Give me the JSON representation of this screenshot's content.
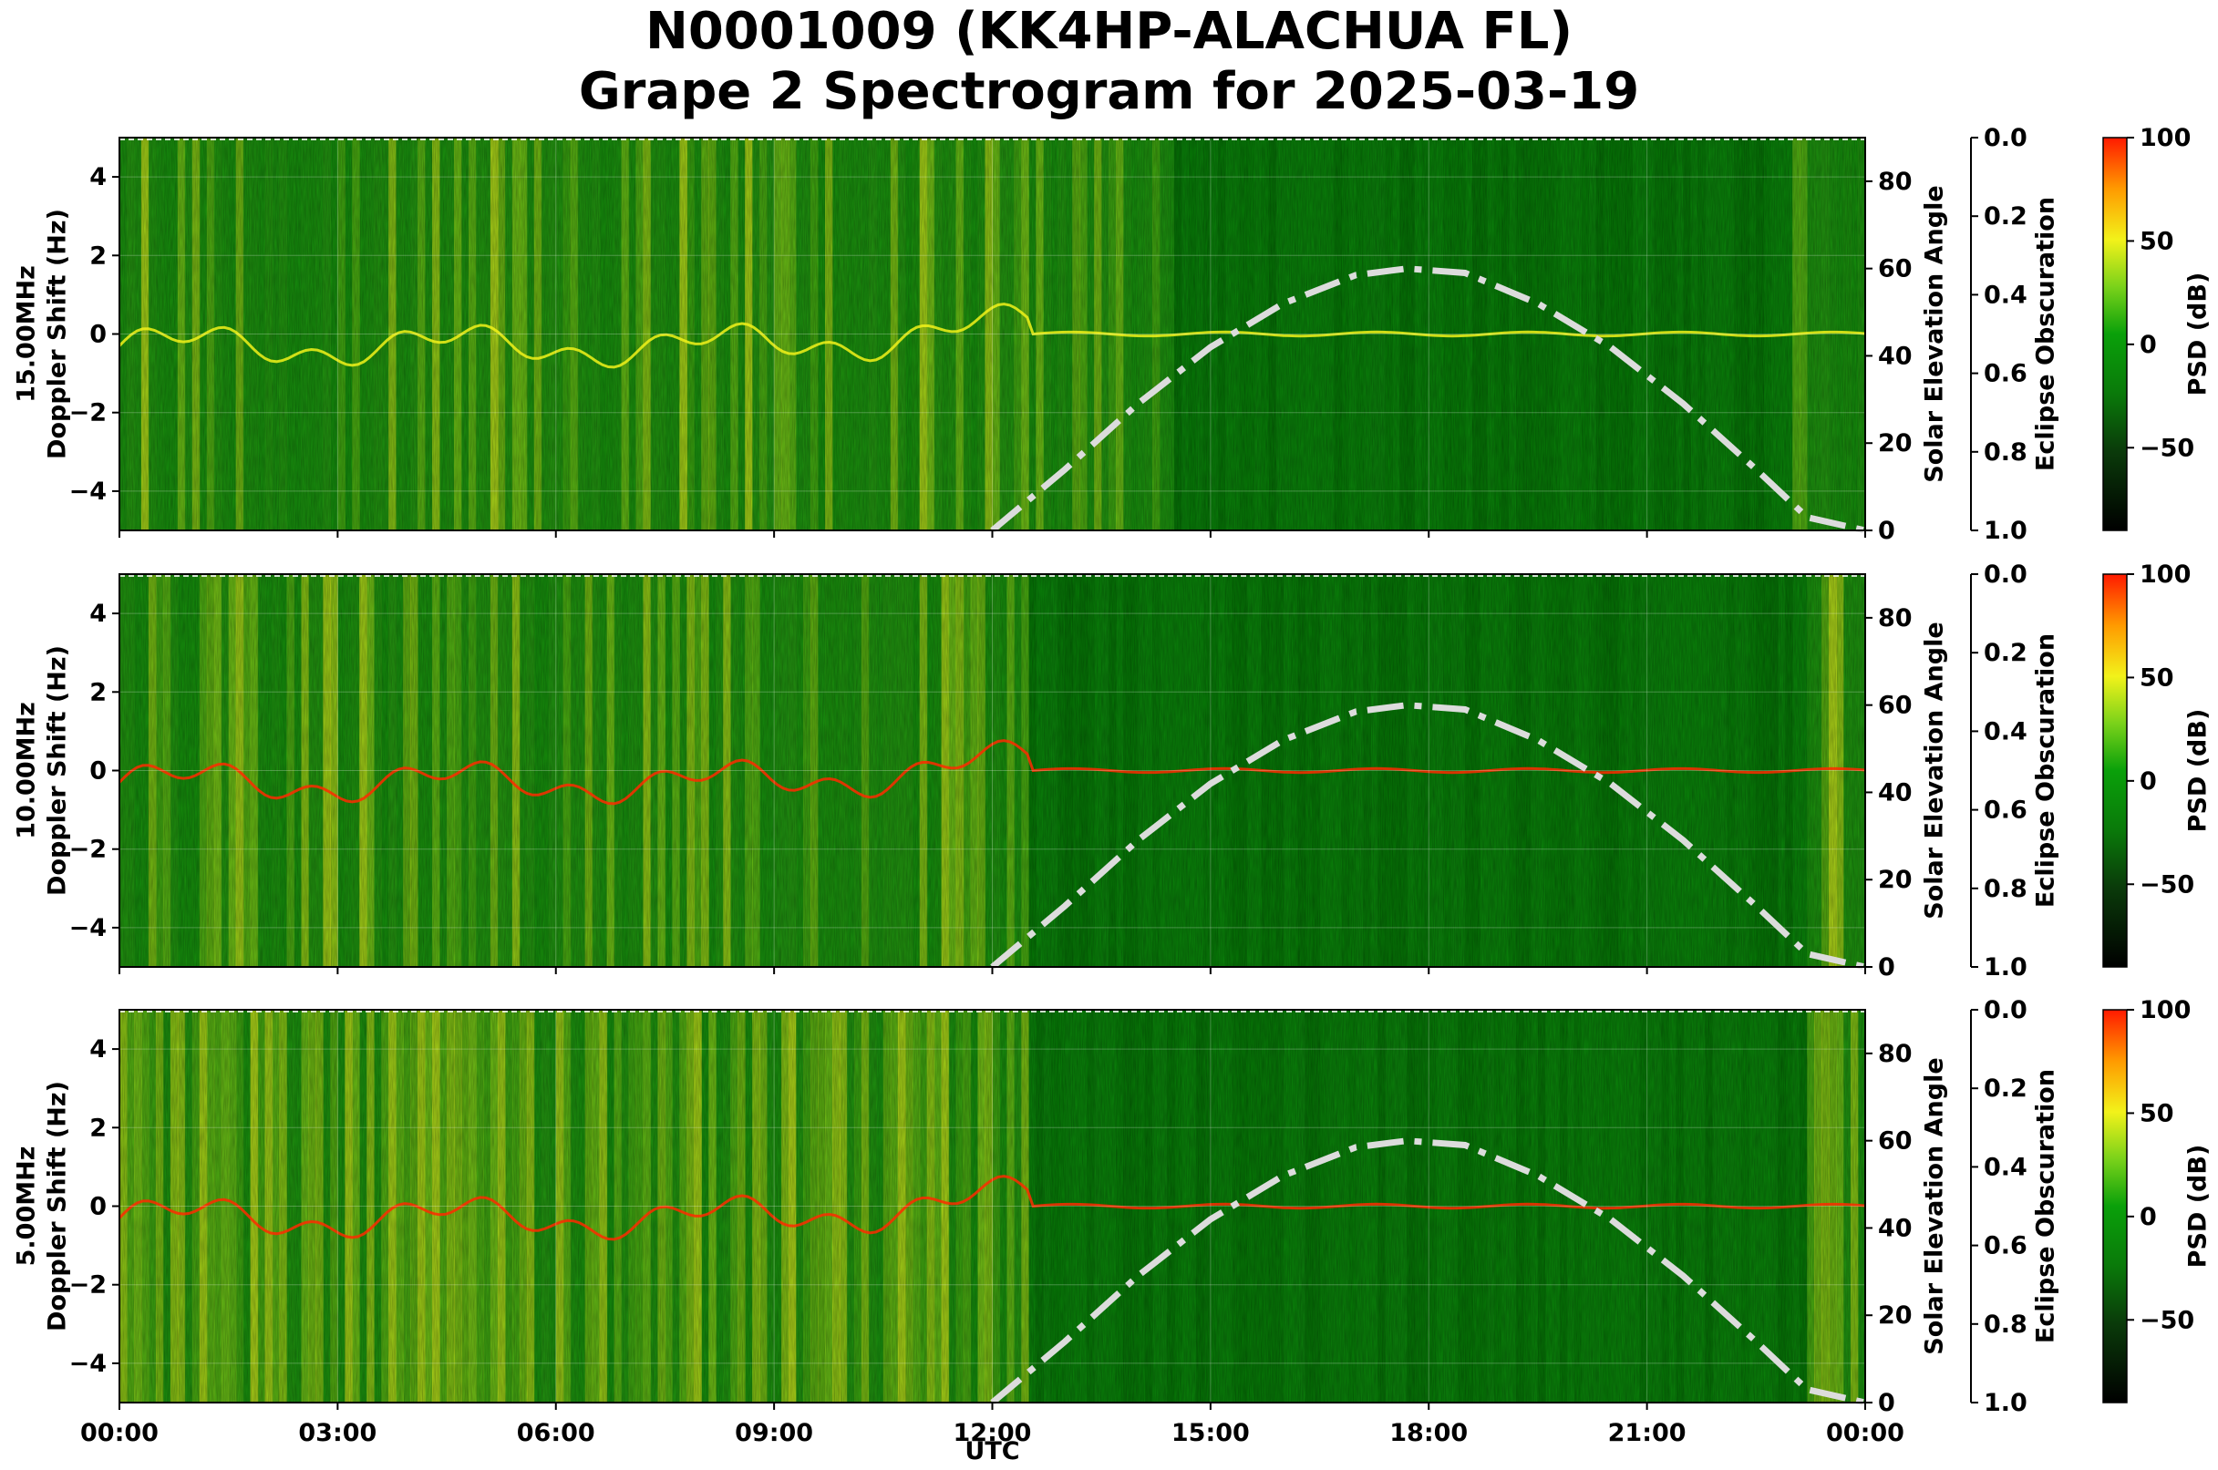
{
  "title": {
    "line1": "N0001009 (KK4HP-ALACHUA FL)",
    "line2": "Grape 2 Spectrogram for 2025-03-19"
  },
  "colors": {
    "background_green": "#0a8a0a",
    "dark_green": "#056f05",
    "yellow": "#f2f21a",
    "red": "#ff2a00",
    "solar_curve": "#dcdcdc"
  },
  "chart_data": {
    "type": "heatmap",
    "xlabel": "UTC",
    "x_range_hours": [
      0,
      24
    ],
    "x_ticks": [
      "00:00",
      "03:00",
      "06:00",
      "09:00",
      "12:00",
      "15:00",
      "18:00",
      "21:00",
      "00:00"
    ],
    "yaxis": {
      "doppler": {
        "label": "Doppler Shift (Hz)",
        "ylim": [
          -5,
          5
        ],
        "ticks": [
          "−4",
          "−2",
          "0",
          "2",
          "4"
        ]
      },
      "solar": {
        "label": "Solar Elevation Angle",
        "ylim": [
          0,
          90
        ],
        "ticks": [
          "0",
          "20",
          "40",
          "60",
          "80"
        ]
      },
      "eclipse": {
        "label": "Eclipse Obscuration",
        "ylim": [
          1.0,
          0.0
        ],
        "ticks": [
          "0.0",
          "0.2",
          "0.4",
          "0.6",
          "0.8",
          "1.0"
        ]
      }
    },
    "colorbar": {
      "label": "PSD (dB)",
      "range": [
        -90,
        100
      ],
      "ticks": [
        "100",
        "50",
        "0",
        "−50"
      ],
      "tick_values": [
        100,
        50,
        0,
        -50
      ]
    },
    "solar_elevation": {
      "style": "dash-dot",
      "hours": [
        12.0,
        13.0,
        14.0,
        15.0,
        16.0,
        17.0,
        17.7,
        18.5,
        19.5,
        20.5,
        21.5,
        22.5,
        23.2,
        24.0
      ],
      "angles": [
        0,
        14,
        29,
        42,
        52,
        58.5,
        60,
        59,
        52,
        42,
        29,
        14,
        3,
        0
      ]
    },
    "panels": [
      {
        "frequency": "15.00MHz",
        "ylabel": "15.00MHz\nDoppler Shift (Hz)"
      },
      {
        "frequency": "10.00MHz",
        "ylabel": "10.00MHz\nDoppler Shift (Hz)"
      },
      {
        "frequency": "5.00MHz",
        "ylabel": "5.00MHz\nDoppler Shift (Hz)"
      }
    ]
  }
}
